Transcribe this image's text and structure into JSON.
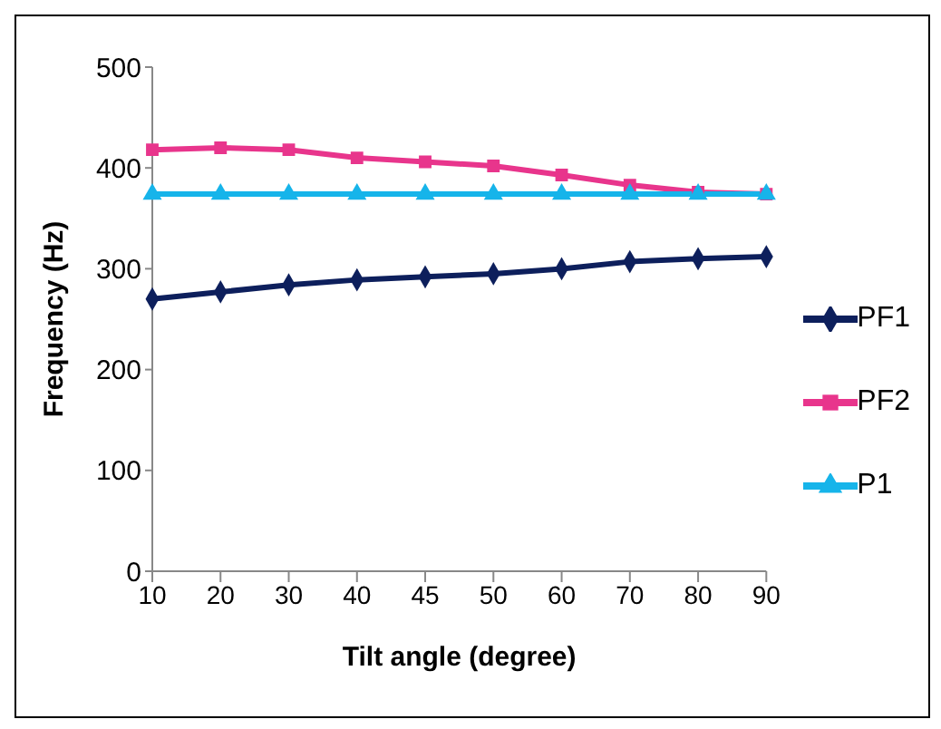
{
  "chart_data": {
    "type": "line",
    "xlabel": "Tilt angle (degree)",
    "ylabel": "Frequency (Hz)",
    "categories": [
      "10",
      "20",
      "30",
      "40",
      "45",
      "50",
      "60",
      "70",
      "80",
      "90"
    ],
    "series": [
      {
        "name": "PF1",
        "color": "#0d1f5c",
        "marker": "diamond",
        "values": [
          270,
          277,
          284,
          289,
          292,
          295,
          300,
          307,
          310,
          312
        ]
      },
      {
        "name": "PF2",
        "color": "#e8358c",
        "marker": "square",
        "values": [
          418,
          420,
          418,
          410,
          406,
          402,
          393,
          383,
          376,
          374
        ]
      },
      {
        "name": "P1",
        "color": "#16b4ea",
        "marker": "triangle",
        "values": [
          374,
          374,
          374,
          374,
          374,
          374,
          374,
          374,
          374,
          374
        ]
      }
    ],
    "ylim": [
      0,
      500
    ],
    "yticks": [
      0,
      100,
      200,
      300,
      400,
      500
    ],
    "grid": false,
    "legend": "right"
  }
}
